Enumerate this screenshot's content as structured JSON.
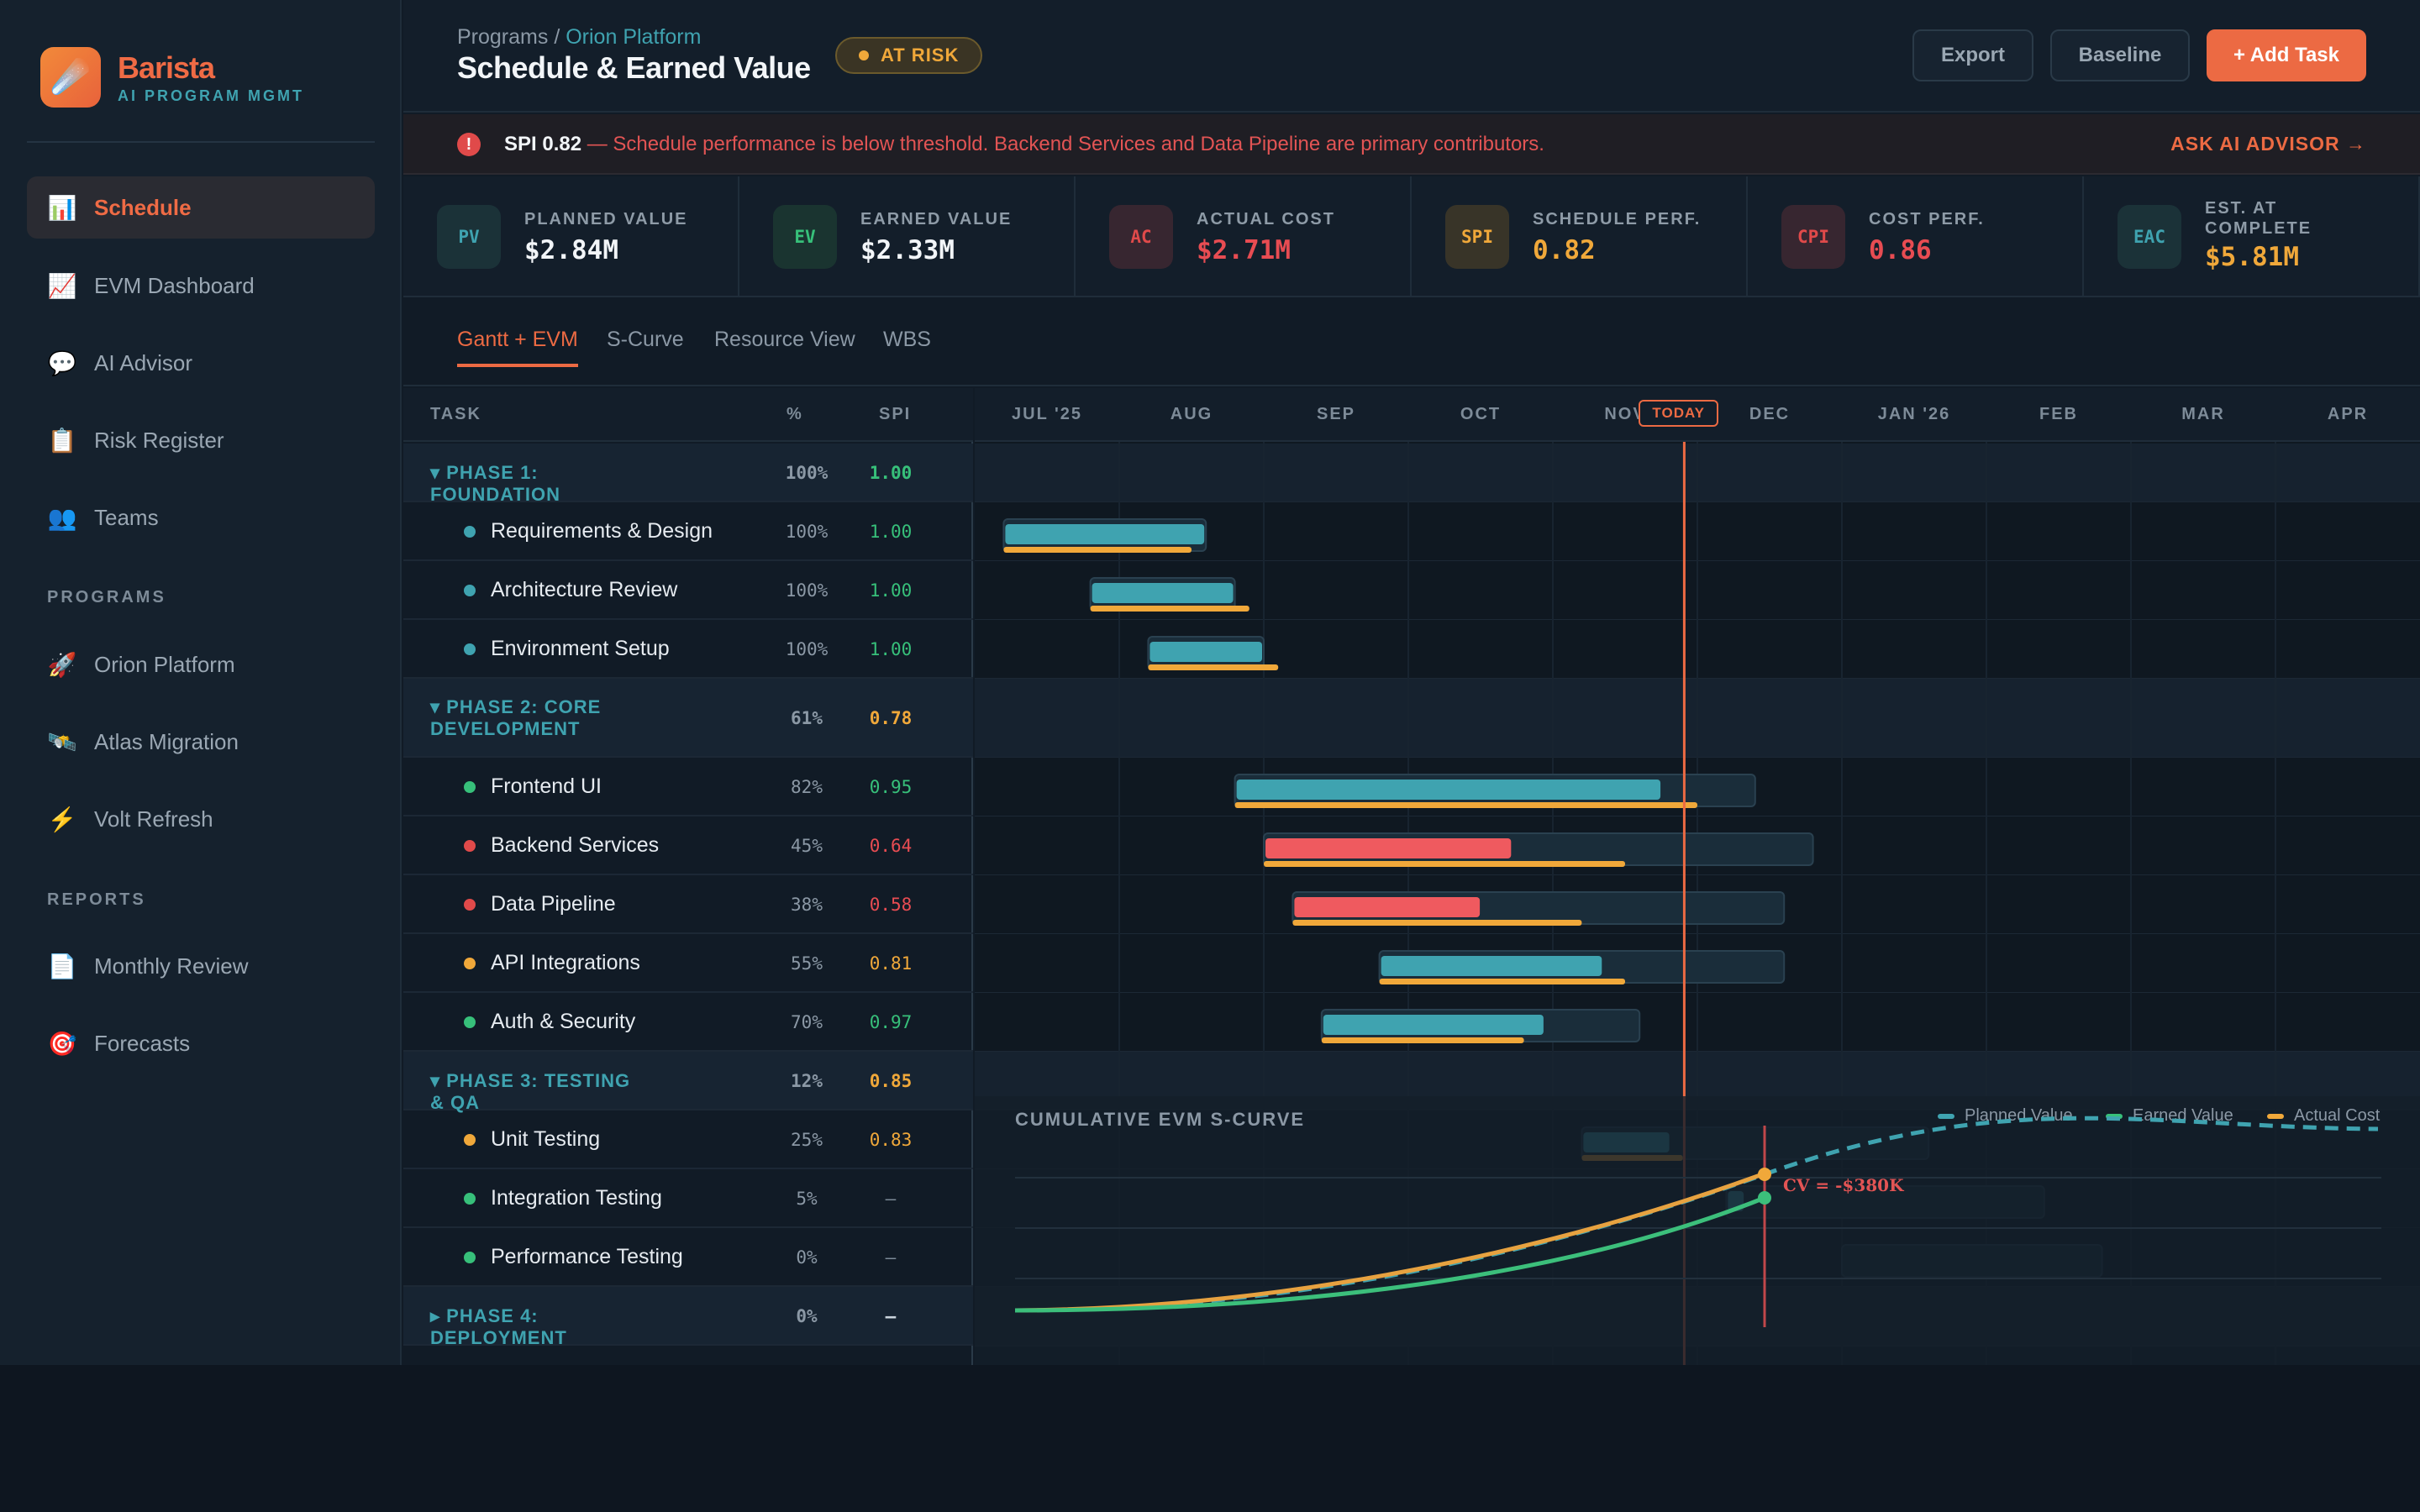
{
  "brand": {
    "name": "Barista",
    "subtitle": "AI PROGRAM MGMT",
    "logo_icon": "☄️"
  },
  "sidebar": {
    "items": [
      {
        "label": "Schedule",
        "icon": "📊",
        "active": true
      },
      {
        "label": "EVM Dashboard",
        "icon": "📈"
      },
      {
        "label": "AI Advisor",
        "icon": "💬"
      },
      {
        "label": "Risk Register",
        "icon": "📋"
      },
      {
        "label": "Teams",
        "icon": "👥"
      }
    ],
    "programs_title": "PROGRAMS",
    "programs": [
      {
        "label": "Orion Platform",
        "icon": "🚀"
      },
      {
        "label": "Atlas Migration",
        "icon": "🛰️"
      },
      {
        "label": "Volt Refresh",
        "icon": "⚡"
      }
    ],
    "reports_title": "REPORTS",
    "reports": [
      {
        "label": "Monthly Review",
        "icon": "📄"
      },
      {
        "label": "Forecasts",
        "icon": "🎯"
      }
    ]
  },
  "header": {
    "breadcrumb_root": "Programs",
    "breadcrumb_sep": "/",
    "breadcrumb_current": "Orion Platform",
    "title": "Schedule & Earned Value",
    "status": "AT RISK",
    "export": "Export",
    "baseline": "Baseline",
    "add_task": "+ Add Task"
  },
  "alert": {
    "metric": "SPI 0.82",
    "message": " — Schedule performance is below threshold. Backend Services and Data Pipeline are primary contributors.",
    "action": "ASK AI ADVISOR →"
  },
  "kpis": [
    {
      "code": "PV",
      "label": "PLANNED VALUE",
      "value": "$2.84M",
      "color": "#3fa3b0",
      "valcolor": "#f2f5f8",
      "bg": "#1b3238"
    },
    {
      "code": "EV",
      "label": "EARNED VALUE",
      "value": "$2.33M",
      "color": "#37c07a",
      "valcolor": "#f2f5f8",
      "bg": "#1a3430"
    },
    {
      "code": "AC",
      "label": "ACTUAL COST",
      "value": "$2.71M",
      "color": "#e04a4a",
      "valcolor": "#e84c52",
      "bg": "#372630"
    },
    {
      "code": "SPI",
      "label": "SCHEDULE PERF.",
      "value": "0.82",
      "color": "#f0a83a",
      "valcolor": "#f0a83a",
      "bg": "#383428"
    },
    {
      "code": "CPI",
      "label": "COST PERF.",
      "value": "0.86",
      "color": "#e04a4a",
      "valcolor": "#e84c52",
      "bg": "#372630"
    },
    {
      "code": "EAC",
      "label": "EST. AT COMPLETE",
      "value": "$5.81M",
      "color": "#3fa3b0",
      "valcolor": "#f0a83a",
      "bg": "#1b3238"
    }
  ],
  "tabs": [
    "Gantt + EVM",
    "S-Curve",
    "Resource View",
    "WBS"
  ],
  "table": {
    "col_task": "TASK",
    "col_pct": "%",
    "col_spi": "SPI"
  },
  "rows": [
    {
      "type": "phase",
      "name": "▾ PHASE 1: FOUNDATION",
      "pct": "100%",
      "spi": "1.00",
      "spicolor": "#37c07a"
    },
    {
      "type": "task",
      "name": "Requirements & Design",
      "pct": "100%",
      "spi": "1.00",
      "dot": "#3fa3b0",
      "spicolor": "#37c07a",
      "start": 0.02,
      "end": 0.16,
      "progress": 1.0,
      "actual": 0.13,
      "barcolor": "#3fa3b0"
    },
    {
      "type": "task",
      "name": "Architecture Review",
      "pct": "100%",
      "spi": "1.00",
      "dot": "#3fa3b0",
      "spicolor": "#37c07a",
      "start": 0.08,
      "end": 0.18,
      "progress": 1.0,
      "actual": 0.11,
      "barcolor": "#3fa3b0"
    },
    {
      "type": "task",
      "name": "Environment Setup",
      "pct": "100%",
      "spi": "1.00",
      "dot": "#3fa3b0",
      "spicolor": "#37c07a",
      "start": 0.12,
      "end": 0.2,
      "progress": 1.0,
      "actual": 0.09,
      "barcolor": "#3fa3b0"
    },
    {
      "type": "phase",
      "name": "▾ PHASE 2: CORE DEVELOPMENT",
      "pct": "61%",
      "spi": "0.78",
      "spicolor": "#f0a83a"
    },
    {
      "type": "task",
      "name": "Frontend UI",
      "pct": "82%",
      "spi": "0.95",
      "dot": "#37c07a",
      "spicolor": "#37c07a",
      "start": 0.18,
      "end": 0.54,
      "progress": 0.82,
      "actual": 0.32,
      "barcolor": "#3fa3b0"
    },
    {
      "type": "task",
      "name": "Backend Services",
      "pct": "45%",
      "spi": "0.64",
      "dot": "#e04a4a",
      "spicolor": "#e84c52",
      "start": 0.2,
      "end": 0.58,
      "progress": 0.45,
      "actual": 0.25,
      "barcolor": "#ef5a5f"
    },
    {
      "type": "task",
      "name": "Data Pipeline",
      "pct": "38%",
      "spi": "0.58",
      "dot": "#e04a4a",
      "spicolor": "#e84c52",
      "start": 0.22,
      "end": 0.56,
      "progress": 0.38,
      "actual": 0.2,
      "barcolor": "#ef5a5f"
    },
    {
      "type": "task",
      "name": "API Integrations",
      "pct": "55%",
      "spi": "0.81",
      "dot": "#f0a83a",
      "spicolor": "#f0a83a",
      "start": 0.28,
      "end": 0.56,
      "progress": 0.55,
      "actual": 0.17,
      "barcolor": "#3fa3b0"
    },
    {
      "type": "task",
      "name": "Auth & Security",
      "pct": "70%",
      "spi": "0.97",
      "dot": "#37c07a",
      "spicolor": "#37c07a",
      "start": 0.24,
      "end": 0.46,
      "progress": 0.7,
      "actual": 0.14,
      "barcolor": "#3fa3b0"
    },
    {
      "type": "phase",
      "name": "▾ PHASE 3: TESTING & QA",
      "pct": "12%",
      "spi": "0.85",
      "spicolor": "#f0a83a"
    },
    {
      "type": "task",
      "name": "Unit Testing",
      "pct": "25%",
      "spi": "0.83",
      "dot": "#f0a83a",
      "spicolor": "#f0a83a",
      "start": 0.42,
      "end": 0.66,
      "progress": 0.25,
      "actual": 0.07,
      "barcolor": "#3fa3b0"
    },
    {
      "type": "task",
      "name": "Integration Testing",
      "pct": "5%",
      "spi": "–",
      "dot": "#37c07a",
      "spicolor": "#7d8b98",
      "start": 0.52,
      "end": 0.74,
      "progress": 0.05,
      "actual": 0,
      "barcolor": "#3fa3b0"
    },
    {
      "type": "task",
      "name": "Performance Testing",
      "pct": "0%",
      "spi": "–",
      "dot": "#37c07a",
      "spicolor": "#7d8b98",
      "start": 0.6,
      "end": 0.78,
      "progress": 0,
      "actual": 0,
      "barcolor": "#3fa3b0"
    },
    {
      "type": "phase",
      "name": "▸ PHASE 4: DEPLOYMENT",
      "pct": "0%",
      "spi": "–",
      "spicolor": "#c9d3dc"
    }
  ],
  "timeline": {
    "months": [
      "JUL '25",
      "AUG",
      "SEP",
      "OCT",
      "NOV",
      "DEC",
      "JAN '26",
      "FEB",
      "MAR",
      "APR"
    ],
    "today_label": "TODAY",
    "today_position": 0.52
  },
  "scurve": {
    "title": "CUMULATIVE EVM S-CURVE",
    "legend": [
      {
        "name": "Planned Value",
        "color": "#3fa3b0"
      },
      {
        "name": "Earned Value",
        "color": "#37c07a"
      },
      {
        "name": "Actual Cost",
        "color": "#f0a83a"
      }
    ],
    "annotation": "CV = -$380K"
  },
  "colors": {
    "accent": "#ec6a43",
    "teal": "#3fa3b0",
    "green": "#37c07a",
    "amber": "#f0a83a",
    "red": "#e04a4a"
  }
}
